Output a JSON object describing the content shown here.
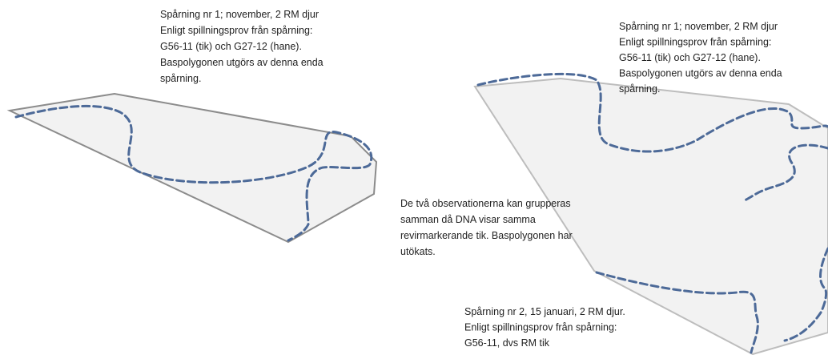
{
  "left_note": {
    "lines": [
      "Spårning nr 1; november,  2 RM djur",
      "Enligt spillningsprov från spårning:",
      "G56-11 (tik) och G27-12 (hane).",
      "Baspolygonen utgörs av denna enda",
      "spårning."
    ]
  },
  "right_top_note": {
    "lines": [
      "Spårning nr 1; november,  2 RM djur",
      "Enligt spillningsprov från spårning:",
      "G56-11 (tik) och G27-12 (hane).",
      "Baspolygonen utgörs av denna enda",
      "spårning."
    ]
  },
  "middle_note": {
    "lines": [
      "De två observationerna kan grupperas",
      "samman då DNA visar samma",
      "revirmarkerande tik. Baspolygonen har",
      "utökats."
    ]
  },
  "bottom_note": {
    "lines": [
      "Spårning nr 2, 15 januari, 2 RM djur.",
      "Enligt spillningsprov från spårning:",
      "G56-11, dvs RM tik"
    ]
  }
}
